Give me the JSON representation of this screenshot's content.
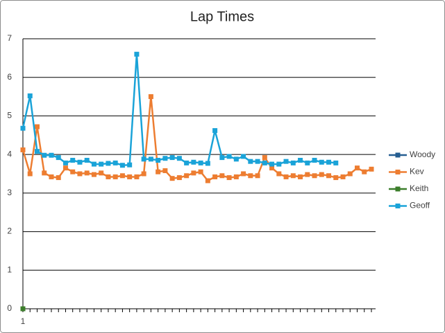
{
  "chart_data": {
    "type": "line",
    "title": "Lap Times",
    "categories": [
      "1",
      null,
      null,
      null,
      null,
      null,
      null,
      null,
      null,
      null,
      null,
      null,
      null,
      null,
      null,
      null,
      null,
      null,
      null,
      null,
      null,
      null,
      null,
      null,
      null,
      null,
      null,
      null,
      null,
      null,
      null,
      null,
      null,
      null,
      null,
      null,
      null,
      null,
      null,
      null,
      null,
      null,
      null,
      null,
      null,
      null,
      null,
      null,
      null,
      null
    ],
    "series": [
      {
        "name": "Woody",
        "color": "#255e91",
        "values": [
          0,
          null,
          null,
          null,
          null,
          null,
          null,
          null,
          null,
          null,
          null,
          null,
          null,
          null,
          null,
          null,
          null,
          null,
          null,
          null,
          null,
          null,
          null,
          null,
          null,
          null,
          null,
          null,
          null,
          null,
          null,
          null,
          null,
          null,
          null,
          null,
          null,
          null,
          null,
          null,
          null,
          null,
          null,
          null,
          null,
          null,
          null,
          null,
          null,
          null
        ]
      },
      {
        "name": "Kev",
        "color": "#ed7d31",
        "values": [
          4.12,
          3.5,
          4.72,
          3.52,
          3.42,
          3.4,
          3.65,
          3.55,
          3.5,
          3.52,
          3.48,
          3.52,
          3.42,
          3.42,
          3.45,
          3.42,
          3.42,
          3.5,
          5.5,
          3.55,
          3.58,
          3.38,
          3.4,
          3.45,
          3.52,
          3.55,
          3.32,
          3.42,
          3.45,
          3.4,
          3.42,
          3.5,
          3.45,
          3.45,
          3.92,
          3.65,
          3.5,
          3.42,
          3.45,
          3.42,
          3.48,
          3.45,
          3.48,
          3.45,
          3.4,
          3.42,
          3.5,
          3.65,
          3.55,
          3.62
        ]
      },
      {
        "name": "Keith",
        "color": "#3b7d2a",
        "values": [
          0,
          null,
          null,
          null,
          null,
          null,
          null,
          null,
          null,
          null,
          null,
          null,
          null,
          null,
          null,
          null,
          null,
          null,
          null,
          null,
          null,
          null,
          null,
          null,
          null,
          null,
          null,
          null,
          null,
          null,
          null,
          null,
          null,
          null,
          null,
          null,
          null,
          null,
          null,
          null,
          null,
          null,
          null,
          null,
          null,
          null,
          null,
          null,
          null,
          null
        ]
      },
      {
        "name": "Geoff",
        "color": "#1aa3d8",
        "values": [
          4.68,
          5.52,
          4.08,
          3.98,
          3.98,
          3.92,
          3.78,
          3.85,
          3.8,
          3.85,
          3.75,
          3.75,
          3.77,
          3.78,
          3.72,
          3.73,
          6.6,
          3.88,
          3.88,
          3.85,
          3.9,
          3.92,
          3.9,
          3.78,
          3.8,
          3.78,
          3.77,
          4.62,
          3.92,
          3.95,
          3.88,
          3.95,
          3.82,
          3.82,
          3.78,
          3.75,
          3.75,
          3.82,
          3.78,
          3.85,
          3.78,
          3.85,
          3.8,
          3.8,
          3.78,
          null,
          null,
          null,
          null,
          null
        ]
      }
    ],
    "ylim": [
      0,
      7
    ],
    "yticks": [
      0,
      1,
      2,
      3,
      4,
      5,
      6,
      7
    ],
    "grid": true,
    "legend": "right"
  }
}
